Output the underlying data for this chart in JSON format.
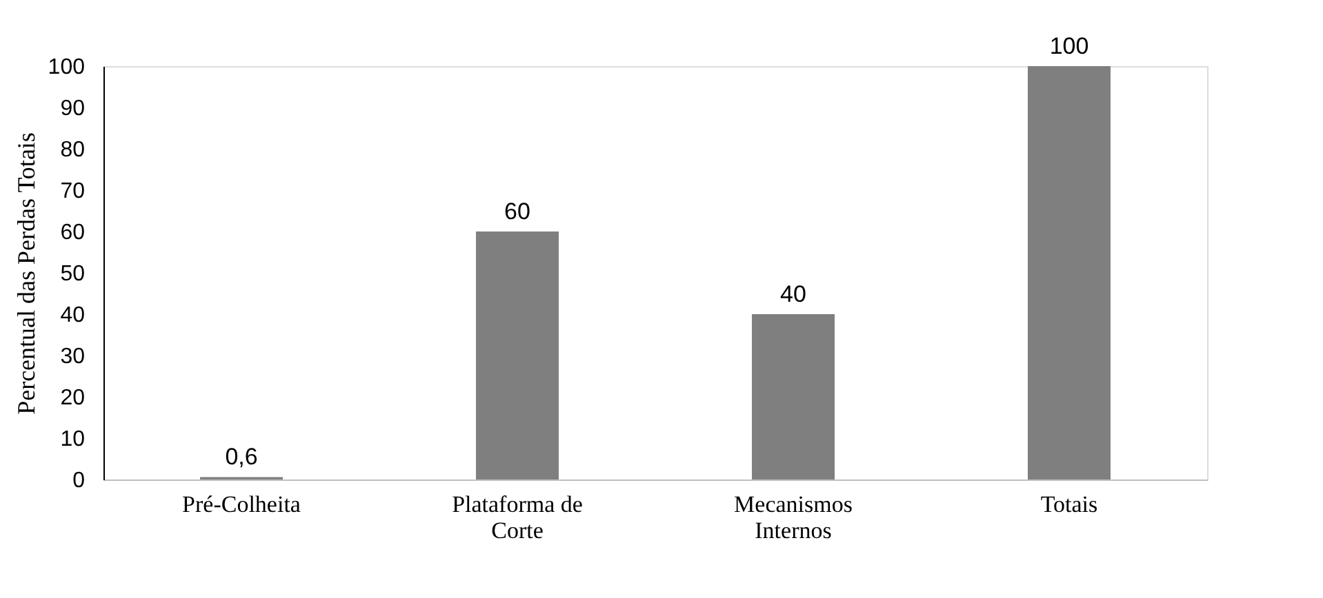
{
  "chart_data": {
    "type": "bar",
    "ylabel": "Percentual das Perdas Totais",
    "categories": [
      "Pré-Colheita",
      "Plataforma de Corte",
      "Mecanismos Internos",
      "Totais"
    ],
    "values": [
      0.6,
      60,
      40,
      100
    ],
    "value_labels": [
      "0,6",
      "60",
      "40",
      "100"
    ],
    "color": "#7f7f7f",
    "ylim": [
      0,
      100
    ],
    "yticks": [
      0,
      10,
      20,
      30,
      40,
      50,
      60,
      70,
      80,
      90,
      100
    ],
    "grid": false
  }
}
